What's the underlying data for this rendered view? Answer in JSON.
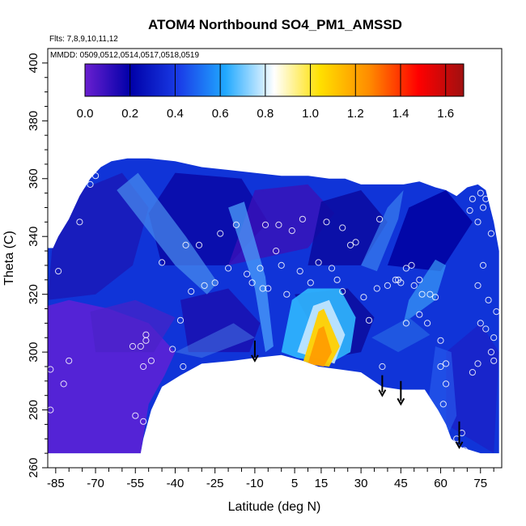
{
  "chart_data": {
    "type": "heatmap",
    "title": "ATOM4 Northbound SO4_PM1_AMSSD",
    "subtitle_flights": "Flts: 7,8,9,10,11,12",
    "subtitle_dates": "MMDD: 0509,0512,0514,0517,0518,0519",
    "xlabel": "Latitude (deg N)",
    "ylabel": "Theta (C)",
    "xlim": [
      -88,
      83
    ],
    "ylim": [
      260,
      405
    ],
    "x_ticks": [
      "-85",
      "-70",
      "-55",
      "-40",
      "-25",
      "-10",
      "5",
      "15",
      "30",
      "45",
      "60",
      "75"
    ],
    "y_ticks": [
      "260",
      "280",
      "300",
      "320",
      "340",
      "360",
      "380",
      "400"
    ],
    "colorbar_ticks": [
      "0.0",
      "0.2",
      "0.4",
      "0.6",
      "0.8",
      "1.0",
      "1.2",
      "1.4",
      "1.6"
    ],
    "colorbar_range": [
      0,
      1.68
    ],
    "colorscale": [
      "#6a1fd0",
      "#0000a8",
      "#1a3ee8",
      "#20a8ff",
      "#ffffff",
      "#ffe000",
      "#ff8c00",
      "#ff0000",
      "#a01010"
    ],
    "arrows_latitude": [
      -10,
      38,
      45,
      67
    ],
    "observations": [
      [
        -87,
        294
      ],
      [
        -87,
        280
      ],
      [
        -84,
        328
      ],
      [
        -82,
        289
      ],
      [
        -80,
        297
      ],
      [
        -76,
        345
      ],
      [
        -72,
        358
      ],
      [
        -70,
        361
      ],
      [
        -56,
        302
      ],
      [
        -53,
        302
      ],
      [
        -51,
        304
      ],
      [
        -52,
        295
      ],
      [
        -49,
        297
      ],
      [
        -51,
        306
      ],
      [
        -52,
        276
      ],
      [
        -55,
        278
      ],
      [
        -45,
        331
      ],
      [
        -41,
        301
      ],
      [
        -38,
        311
      ],
      [
        -37,
        295
      ],
      [
        -40,
        289
      ],
      [
        -34,
        321
      ],
      [
        -36,
        337
      ],
      [
        -31,
        337
      ],
      [
        -29,
        323
      ],
      [
        -25,
        324
      ],
      [
        -23,
        341
      ],
      [
        -20,
        329
      ],
      [
        -17,
        344
      ],
      [
        -13,
        327
      ],
      [
        -11,
        324
      ],
      [
        -7,
        322
      ],
      [
        -8,
        329
      ],
      [
        -5,
        322
      ],
      [
        -1,
        344
      ],
      [
        -2,
        335
      ],
      [
        -6,
        344
      ],
      [
        0,
        330
      ],
      [
        2,
        320
      ],
      [
        4,
        342
      ],
      [
        7,
        328
      ],
      [
        8,
        346
      ],
      [
        11,
        324
      ],
      [
        14,
        331
      ],
      [
        17,
        345
      ],
      [
        19,
        329
      ],
      [
        23,
        343
      ],
      [
        21,
        325
      ],
      [
        23,
        321
      ],
      [
        26,
        337
      ],
      [
        28,
        338
      ],
      [
        31,
        319
      ],
      [
        33,
        311
      ],
      [
        37,
        346
      ],
      [
        36,
        322
      ],
      [
        38,
        295
      ],
      [
        40,
        323
      ],
      [
        43,
        325
      ],
      [
        44,
        325
      ],
      [
        45,
        324
      ],
      [
        47,
        329
      ],
      [
        47,
        310
      ],
      [
        49,
        330
      ],
      [
        50,
        323
      ],
      [
        52,
        325
      ],
      [
        53,
        320
      ],
      [
        52,
        313
      ],
      [
        55,
        310
      ],
      [
        56,
        320
      ],
      [
        58,
        319
      ],
      [
        60,
        304
      ],
      [
        62,
        296
      ],
      [
        60,
        295
      ],
      [
        62,
        289
      ],
      [
        61,
        282
      ],
      [
        63,
        269
      ],
      [
        64,
        267
      ],
      [
        66,
        270
      ],
      [
        68,
        272
      ],
      [
        69,
        266
      ],
      [
        72,
        293
      ],
      [
        74,
        296
      ],
      [
        75,
        310
      ],
      [
        74,
        323
      ],
      [
        76,
        330
      ],
      [
        77,
        308
      ],
      [
        79,
        300
      ],
      [
        80,
        305
      ],
      [
        80,
        297
      ],
      [
        78,
        318
      ],
      [
        79,
        341
      ],
      [
        81,
        314
      ],
      [
        74,
        345
      ],
      [
        76,
        350
      ],
      [
        75,
        355
      ],
      [
        77,
        353
      ],
      [
        71,
        349
      ],
      [
        72,
        353
      ]
    ]
  }
}
